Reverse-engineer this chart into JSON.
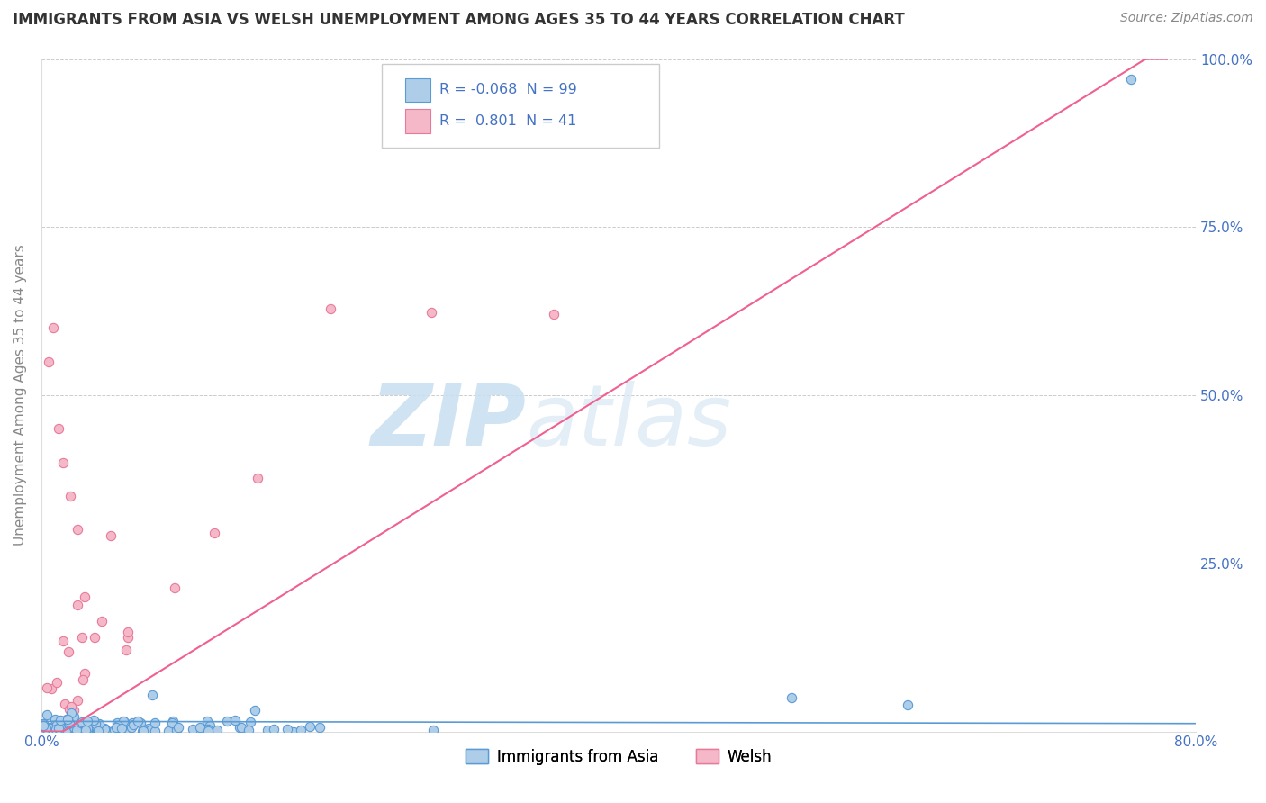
{
  "title": "IMMIGRANTS FROM ASIA VS WELSH UNEMPLOYMENT AMONG AGES 35 TO 44 YEARS CORRELATION CHART",
  "source": "Source: ZipAtlas.com",
  "ylabel": "Unemployment Among Ages 35 to 44 years",
  "xlim": [
    0.0,
    0.8
  ],
  "ylim": [
    0.0,
    1.0
  ],
  "xticks": [
    0.0,
    0.1,
    0.2,
    0.3,
    0.4,
    0.5,
    0.6,
    0.7,
    0.8
  ],
  "xticklabels": [
    "0.0%",
    "",
    "",
    "",
    "",
    "",
    "",
    "",
    "80.0%"
  ],
  "yticks": [
    0.0,
    0.25,
    0.5,
    0.75,
    1.0
  ],
  "yticklabels_right": [
    "",
    "25.0%",
    "50.0%",
    "75.0%",
    "100.0%"
  ],
  "R_asia": -0.068,
  "N_asia": 99,
  "R_welsh": 0.801,
  "N_welsh": 41,
  "scatter_color_asia": "#aecde8",
  "scatter_color_welsh": "#f4b8c8",
  "scatter_edge_asia": "#5b9bd5",
  "scatter_edge_welsh": "#e8799a",
  "line_color_asia": "#5b9bd5",
  "line_color_welsh": "#f06090",
  "watermark_zip": "ZIP",
  "watermark_atlas": "atlas",
  "background_color": "#ffffff",
  "grid_color": "#cccccc",
  "legend_label_asia": "Immigrants from Asia",
  "legend_label_welsh": "Welsh",
  "title_fontsize": 12,
  "axis_label_color": "#4472c4",
  "tick_label_color": "#4472c4",
  "ylabel_color": "#888888",
  "source_color": "#888888",
  "title_color": "#333333",
  "legend_text_color": "#333333",
  "legend_value_color": "#4472c4"
}
